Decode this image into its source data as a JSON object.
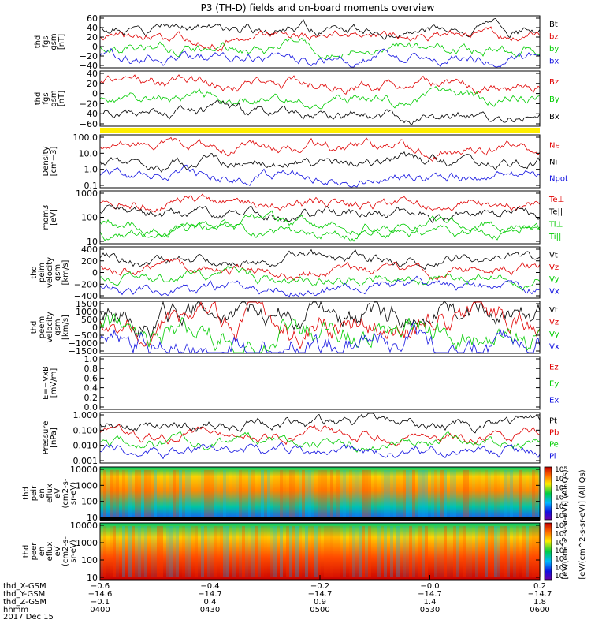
{
  "title": "P3 (TH-D) fields and on-board moments overview",
  "date_label": "2017 Dec 15",
  "colors": {
    "black": "#000000",
    "red": "#e00000",
    "green": "#00cc00",
    "blue": "#1010e0",
    "yellow": "#ffee00"
  },
  "chart_data": [
    {
      "type": "line",
      "ylabel": [
        "thd",
        "fgs",
        "gsm",
        "[nT]"
      ],
      "yticks": [
        "60",
        "40",
        "20",
        "0",
        "−20",
        "−40"
      ],
      "ylim": [
        -40,
        60
      ],
      "legend": [
        {
          "name": "Bt",
          "color": "black"
        },
        {
          "name": "bz",
          "color": "red"
        },
        {
          "name": "by",
          "color": "green"
        },
        {
          "name": "bx",
          "color": "blue"
        }
      ]
    },
    {
      "type": "line",
      "ylabel": [
        "thd",
        "fgs",
        "gsm",
        "[nT]"
      ],
      "yticks": [
        "40",
        "20",
        "0",
        "−20",
        "−40",
        "−60"
      ],
      "ylim": [
        -70,
        40
      ],
      "legend": [
        {
          "name": "Bz",
          "color": "red"
        },
        {
          "name": "By",
          "color": "green"
        },
        {
          "name": "Bx",
          "color": "black"
        }
      ]
    },
    {
      "type": "line",
      "ylabel": [
        "Density",
        "[cm−3]"
      ],
      "yticks": [
        "100.0",
        "10.0",
        "1.0",
        "0.1"
      ],
      "ylim": [
        0.1,
        100
      ],
      "scale": "log",
      "legend": [
        {
          "name": "Ne",
          "color": "red"
        },
        {
          "name": "Ni",
          "color": "black"
        },
        {
          "name": "Npot",
          "color": "blue"
        }
      ]
    },
    {
      "type": "line",
      "ylabel": [
        "mom3",
        "[eV]"
      ],
      "yticks": [
        "1000",
        "100",
        "10"
      ],
      "ylim": [
        10,
        5000
      ],
      "scale": "log",
      "legend": [
        {
          "name": "Te⊥",
          "color": "red"
        },
        {
          "name": "Te||",
          "color": "black"
        },
        {
          "name": "Ti⊥",
          "color": "green"
        },
        {
          "name": "Ti||",
          "color": "green"
        }
      ]
    },
    {
      "type": "line",
      "ylabel": [
        "thd",
        "peim",
        "velocity",
        "gsm",
        "[km/s]"
      ],
      "yticks": [
        "400",
        "200",
        "0",
        "−200",
        "−400"
      ],
      "ylim": [
        -400,
        400
      ],
      "legend": [
        {
          "name": "Vt",
          "color": "black"
        },
        {
          "name": "Vz",
          "color": "red"
        },
        {
          "name": "Vy",
          "color": "green"
        },
        {
          "name": "Vx",
          "color": "blue"
        }
      ]
    },
    {
      "type": "line",
      "ylabel": [
        "thd",
        "peem",
        "velocity",
        "gsm",
        "[km/s]"
      ],
      "yticks": [
        "1500",
        "1000",
        "500",
        "0",
        "−500",
        "−1000",
        "−1500"
      ],
      "ylim": [
        -1500,
        1500
      ],
      "legend": [
        {
          "name": "Vt",
          "color": "black"
        },
        {
          "name": "Vz",
          "color": "red"
        },
        {
          "name": "Vy",
          "color": "green"
        },
        {
          "name": "Vx",
          "color": "blue"
        }
      ]
    },
    {
      "type": "line",
      "ylabel": [
        "E=−VxB",
        "[mV/m]"
      ],
      "yticks": [
        "1.0",
        "0.8",
        "0.6",
        "0.4",
        "0.2",
        "0.0"
      ],
      "ylim": [
        0,
        1
      ],
      "legend": [
        {
          "name": "Ez",
          "color": "red"
        },
        {
          "name": "Ey",
          "color": "green"
        },
        {
          "name": "Ex",
          "color": "blue"
        }
      ]
    },
    {
      "type": "line",
      "ylabel": [
        "Pressure",
        "[nPa]"
      ],
      "yticks": [
        "1.000",
        "0.100",
        "0.010",
        "0.001"
      ],
      "ylim": [
        0.001,
        1
      ],
      "scale": "log",
      "legend": [
        {
          "name": "Pt",
          "color": "black"
        },
        {
          "name": "Pb",
          "color": "red"
        },
        {
          "name": "Pe",
          "color": "green"
        },
        {
          "name": "Pi",
          "color": "blue"
        }
      ]
    },
    {
      "type": "heatmap",
      "ylabel": [
        "thd",
        "peir",
        "en",
        "eflux",
        "eV",
        "(cm2-s-",
        "sr-eV)"
      ],
      "yticks": [
        "10000",
        "1000",
        "100",
        "10"
      ],
      "ylim": [
        5,
        25000
      ],
      "scale": "log",
      "colorbar_ticks": [
        "10⁸",
        "10⁷",
        "10⁶",
        "10⁵",
        "10⁴",
        "10³"
      ]
    },
    {
      "type": "heatmap",
      "ylabel": [
        "thd",
        "peer",
        "en",
        "eflux",
        "eV",
        "(cm2-s-",
        "sr-eV)"
      ],
      "yticks": [
        "10000",
        "1000",
        "100",
        "10"
      ],
      "ylim": [
        5,
        25000
      ],
      "scale": "log",
      "colorbar_ticks": [
        "10⁸",
        "10⁷",
        "10⁶",
        "10⁵",
        "10⁴",
        "10³",
        "10²"
      ]
    }
  ],
  "colorbar_label": "[eV/(cm^2-s-sr-eV)] (All Qs)",
  "colorbar_overprint": "[eV/(cm^2-s-sr-eV)] (All Qs)",
  "x_axis": {
    "row_labels": [
      "thd_X-GSM",
      "thd_Y-GSM",
      "thd_Z-GSM",
      "hhmm"
    ],
    "ticks": [
      {
        "x": "−0.6",
        "y": "−14.6",
        "z": "−0.1",
        "t": "0400"
      },
      {
        "x": "−0.4",
        "y": "−14.7",
        "z": "0.4",
        "t": "0430"
      },
      {
        "x": "−0.2",
        "y": "−14.7",
        "z": "0.9",
        "t": "0500"
      },
      {
        "x": "−0.0",
        "y": "−14.7",
        "z": "1.4",
        "t": "0530"
      },
      {
        "x": "0.2",
        "y": "−14.7",
        "z": "1.8",
        "t": "0600"
      }
    ]
  }
}
